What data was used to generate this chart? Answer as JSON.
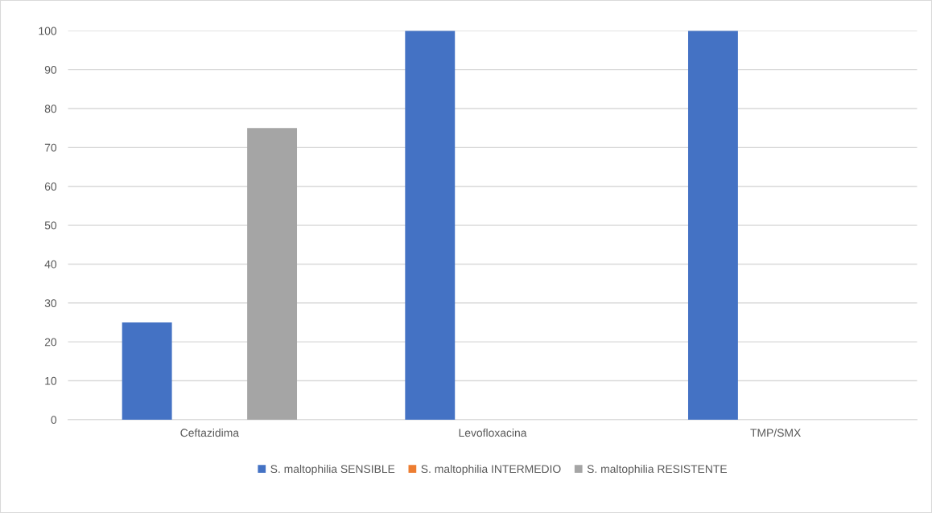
{
  "chart_data": {
    "type": "bar",
    "categories": [
      "Ceftazidima",
      "Levofloxacina",
      "TMP/SMX"
    ],
    "series": [
      {
        "name": "S. maltophilia SENSIBLE",
        "color": "#4472c4",
        "values": [
          25,
          100,
          100
        ]
      },
      {
        "name": "S. maltophilia INTERMEDIO",
        "color": "#ed7d31",
        "values": [
          0,
          0,
          0
        ]
      },
      {
        "name": "S. maltophilia RESISTENTE",
        "color": "#a5a5a5",
        "values": [
          75,
          0,
          0
        ]
      }
    ],
    "ylim": [
      0,
      100
    ],
    "yticks": [
      0,
      10,
      20,
      30,
      40,
      50,
      60,
      70,
      80,
      90,
      100
    ],
    "grid": "y",
    "legend": "bottom"
  }
}
